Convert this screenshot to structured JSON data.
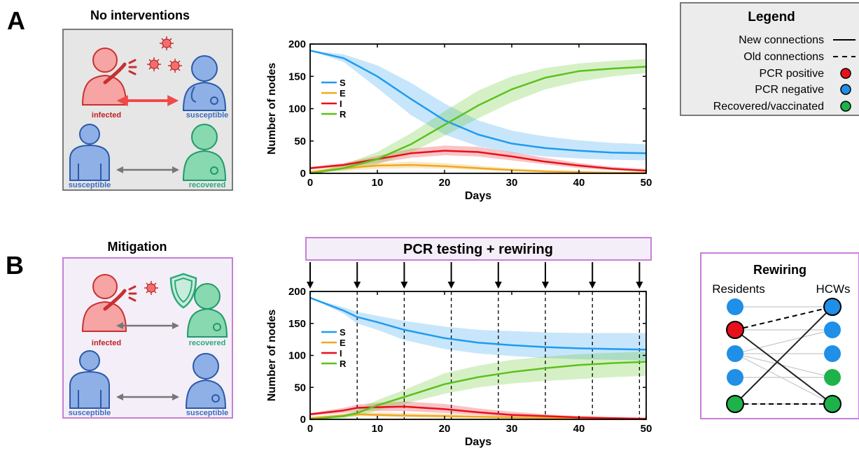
{
  "panel_a": {
    "letter": "A",
    "title": "No interventions",
    "labels": {
      "infected": "infected",
      "susceptible_top": "susceptible",
      "susceptible_bottom": "susceptible",
      "recovered": "recovered"
    }
  },
  "panel_b": {
    "letter": "B",
    "title": "Mitigation",
    "banner": "PCR testing + rewiring",
    "labels": {
      "infected": "infected",
      "recovered": "recovered",
      "susceptible_left": "susceptible",
      "susceptible_right": "susceptible"
    }
  },
  "legend": {
    "title": "Legend",
    "items": [
      {
        "label": "New connections",
        "kind": "solid-line"
      },
      {
        "label": "Old connections",
        "kind": "dashed-line"
      },
      {
        "label": "PCR positive",
        "kind": "dot",
        "color": "#e8101a"
      },
      {
        "label": "PCR negative",
        "kind": "dot",
        "color": "#1f8fe8"
      },
      {
        "label": "Recovered/vaccinated",
        "kind": "dot",
        "color": "#1db34a"
      }
    ]
  },
  "rewiring": {
    "title": "Rewiring",
    "left_label": "Residents",
    "right_label": "HCWs",
    "residents": [
      "#1f8fe8",
      "#e8101a",
      "#1f8fe8",
      "#1f8fe8",
      "#1db34a"
    ],
    "hcws": [
      "#1f8fe8",
      "#1f8fe8",
      "#1f8fe8",
      "#1db34a",
      "#1db34a"
    ],
    "old_edges": [
      [
        0,
        0
      ],
      [
        1,
        1
      ],
      [
        2,
        2
      ],
      [
        3,
        3
      ],
      [
        2,
        1
      ],
      [
        2,
        3
      ],
      [
        2,
        4
      ],
      [
        4,
        4
      ]
    ],
    "new_edges": [
      [
        1,
        4
      ],
      [
        4,
        0
      ]
    ],
    "dashed_edges": [
      [
        1,
        0
      ],
      [
        4,
        4
      ]
    ]
  },
  "colors": {
    "S": "#1f9bf0",
    "E": "#f0a820",
    "I": "#e8101a",
    "R": "#5ac21c",
    "infected": "#e03030",
    "susceptible": "#3c6cc0",
    "recovered": "#2aaa78",
    "mitigation_border": "#c67fd8"
  },
  "chart_data": [
    {
      "type": "line",
      "xlabel": "Days",
      "ylabel": "Number of nodes",
      "xlim": [
        0,
        50
      ],
      "ylim": [
        0,
        200
      ],
      "xticks": [
        0,
        10,
        20,
        30,
        40,
        50
      ],
      "yticks": [
        0,
        50,
        100,
        150,
        200
      ],
      "legend_position": "left",
      "x": [
        0,
        5,
        10,
        15,
        20,
        25,
        30,
        35,
        40,
        45,
        50
      ],
      "series": [
        {
          "name": "S",
          "values": [
            190,
            178,
            150,
            115,
            82,
            60,
            46,
            39,
            35,
            32,
            31
          ],
          "lower": [
            190,
            172,
            132,
            90,
            60,
            42,
            32,
            26,
            23,
            21,
            20
          ],
          "upper": [
            190,
            184,
            167,
            140,
            108,
            82,
            66,
            57,
            51,
            47,
            45
          ]
        },
        {
          "name": "E",
          "values": [
            2,
            8,
            12,
            13,
            11,
            8,
            5,
            3,
            2,
            1,
            1
          ],
          "lower": [
            0,
            4,
            7,
            8,
            7,
            5,
            3,
            2,
            1,
            0,
            0
          ],
          "upper": [
            4,
            11,
            16,
            18,
            16,
            12,
            8,
            5,
            3,
            2,
            2
          ]
        },
        {
          "name": "I",
          "values": [
            8,
            13,
            22,
            31,
            35,
            33,
            26,
            18,
            12,
            7,
            4
          ],
          "lower": [
            6,
            10,
            16,
            24,
            28,
            26,
            20,
            14,
            8,
            5,
            3
          ],
          "upper": [
            10,
            16,
            27,
            38,
            43,
            41,
            33,
            24,
            16,
            10,
            7
          ]
        },
        {
          "name": "R",
          "values": [
            0,
            8,
            22,
            45,
            75,
            105,
            130,
            148,
            158,
            162,
            165
          ],
          "lower": [
            0,
            4,
            14,
            32,
            58,
            85,
            110,
            130,
            142,
            150,
            155
          ],
          "upper": [
            0,
            14,
            33,
            62,
            96,
            128,
            150,
            163,
            170,
            174,
            177
          ]
        }
      ]
    },
    {
      "type": "line",
      "xlabel": "Days",
      "ylabel": "Number of nodes",
      "xlim": [
        0,
        50
      ],
      "ylim": [
        0,
        200
      ],
      "xticks": [
        0,
        10,
        20,
        30,
        40,
        50
      ],
      "yticks": [
        0,
        50,
        100,
        150,
        200
      ],
      "legend_position": "left",
      "testing_days": [
        0,
        7,
        14,
        21,
        28,
        35,
        42,
        49
      ],
      "x": [
        0,
        5,
        7,
        10,
        14,
        20,
        25,
        30,
        35,
        40,
        45,
        50
      ],
      "series": [
        {
          "name": "S",
          "values": [
            190,
            170,
            160,
            152,
            140,
            127,
            120,
            116,
            113,
            111,
            110,
            109
          ],
          "lower": [
            190,
            165,
            150,
            140,
            124,
            110,
            103,
            99,
            96,
            94,
            93,
            92
          ],
          "upper": [
            190,
            175,
            168,
            162,
            154,
            145,
            140,
            138,
            136,
            135,
            135,
            135
          ]
        },
        {
          "name": "E",
          "values": [
            2,
            6,
            8,
            7,
            6,
            5,
            4,
            3,
            2,
            2,
            1,
            1
          ],
          "lower": [
            0,
            3,
            5,
            4,
            3,
            2,
            2,
            1,
            1,
            0,
            0,
            0
          ],
          "upper": [
            4,
            9,
            12,
            11,
            10,
            9,
            7,
            5,
            4,
            3,
            2,
            2
          ]
        },
        {
          "name": "I",
          "values": [
            8,
            14,
            18,
            19,
            20,
            16,
            11,
            7,
            5,
            3,
            2,
            1
          ],
          "lower": [
            6,
            10,
            13,
            13,
            13,
            10,
            7,
            4,
            2,
            1,
            1,
            0
          ],
          "upper": [
            10,
            18,
            23,
            26,
            28,
            24,
            17,
            12,
            8,
            5,
            3,
            2
          ]
        },
        {
          "name": "R",
          "values": [
            0,
            5,
            10,
            22,
            35,
            55,
            66,
            74,
            80,
            85,
            88,
            90
          ],
          "lower": [
            0,
            2,
            5,
            14,
            24,
            40,
            50,
            56,
            60,
            63,
            66,
            68
          ],
          "upper": [
            0,
            8,
            15,
            30,
            46,
            72,
            84,
            93,
            98,
            102,
            104,
            106
          ]
        }
      ]
    }
  ]
}
